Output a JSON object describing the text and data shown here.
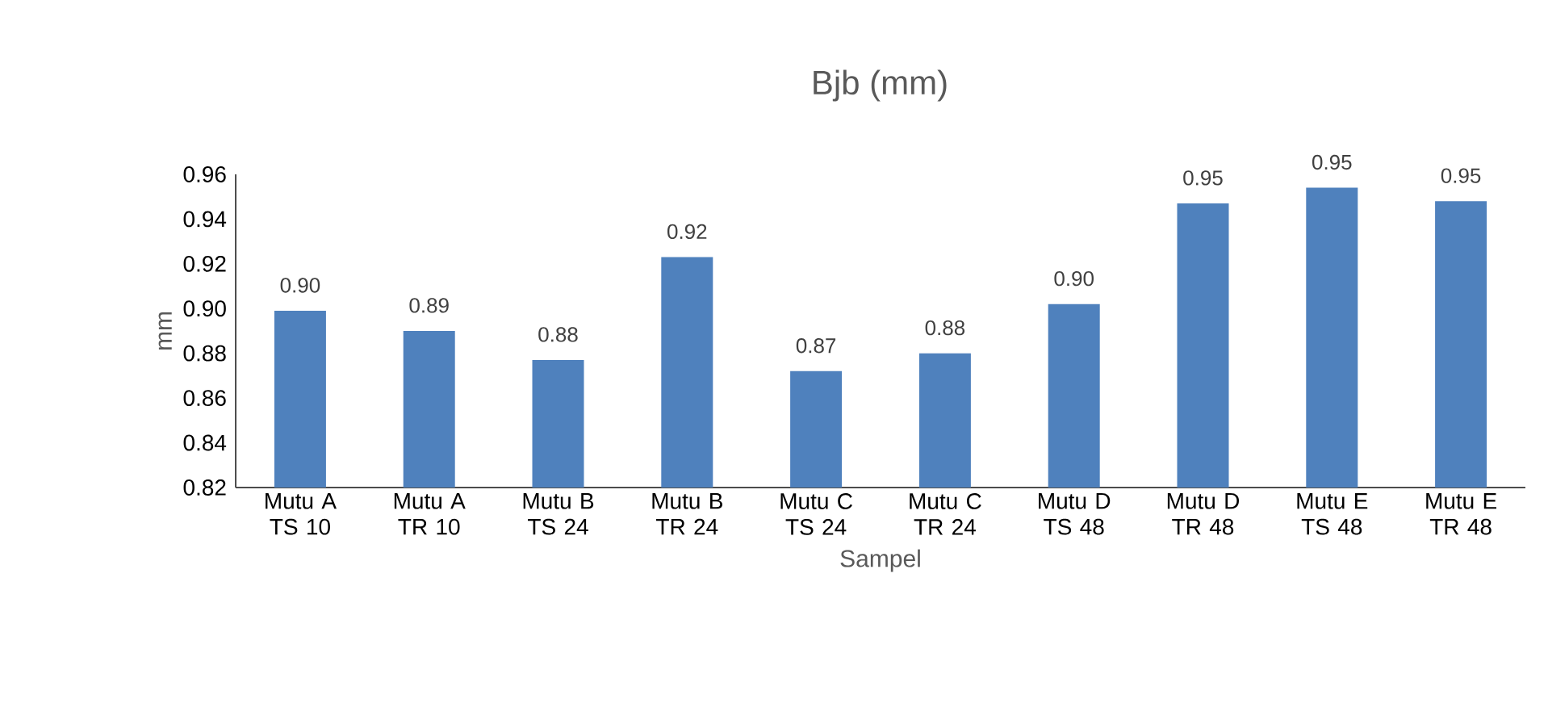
{
  "chart_data": {
    "type": "bar",
    "title": "Bjb (mm)",
    "xlabel": "Sampel",
    "ylabel": "mm",
    "categories": [
      "Mutu A TS 10",
      "Mutu A TR 10",
      "Mutu B TS 24",
      "Mutu B TR 24",
      "Mutu C TS 24",
      "Mutu C TR 24",
      "Mutu D TS 48",
      "Mutu D TR 48",
      "Mutu E TS 48",
      "Mutu E TR 48"
    ],
    "values": [
      0.899,
      0.89,
      0.877,
      0.923,
      0.872,
      0.88,
      0.902,
      0.947,
      0.954,
      0.948
    ],
    "value_labels": [
      "0.90",
      "0.89",
      "0.88",
      "0.92",
      "0.87",
      "0.88",
      "0.90",
      "0.95",
      "0.95",
      "0.95"
    ],
    "color": "#4f81bd",
    "ylim": [
      0.82,
      0.96
    ],
    "yticks": [
      "0.82",
      "0.84",
      "0.86",
      "0.88",
      "0.90",
      "0.92",
      "0.94",
      "0.96"
    ],
    "grid": false
  }
}
